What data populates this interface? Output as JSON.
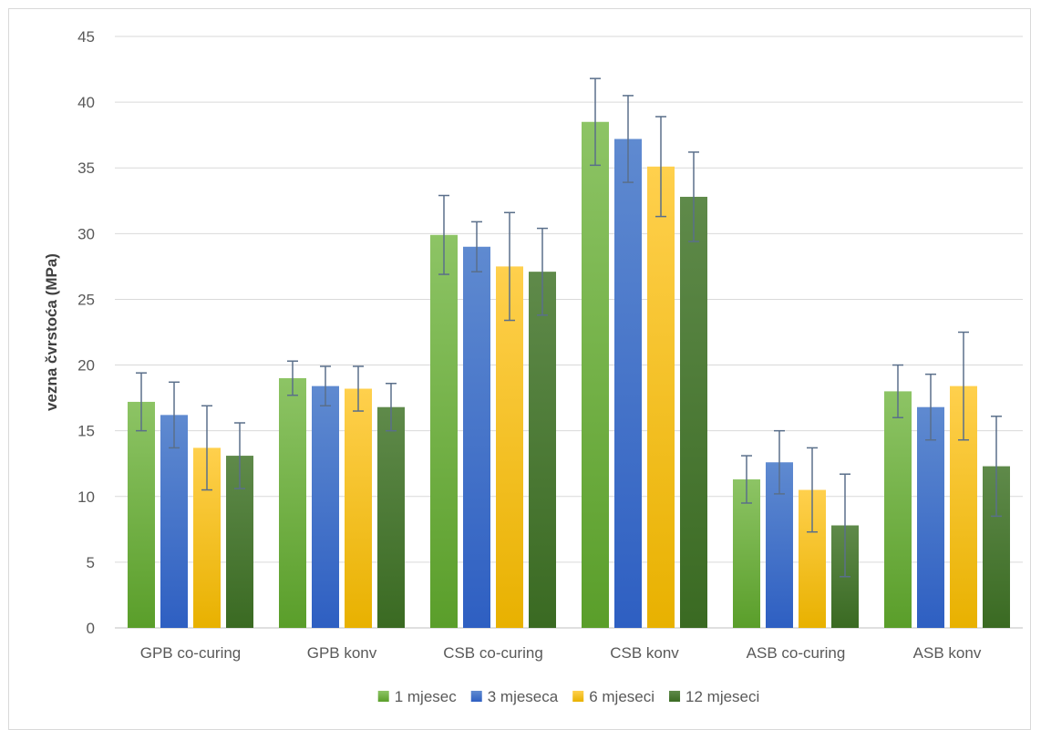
{
  "chart_data": {
    "type": "bar",
    "title": "",
    "xlabel": "",
    "ylabel": "vezna čvrstoća (MPa)",
    "ylim": [
      0,
      45
    ],
    "yticks": [
      0,
      5,
      10,
      15,
      20,
      25,
      30,
      35,
      40,
      45
    ],
    "grid": true,
    "legend_position": "bottom",
    "categories": [
      "GPB co-curing",
      "GPB konv",
      "CSB co-curing",
      "CSB konv",
      "ASB co-curing",
      "ASB konv"
    ],
    "series": [
      {
        "name": "1 mjesec",
        "color_top": "#8dc465",
        "color_bottom": "#5a9e2a",
        "values": [
          17.2,
          19.0,
          29.9,
          38.5,
          11.3,
          18.0
        ],
        "errors": [
          2.2,
          1.3,
          3.0,
          3.3,
          1.8,
          2.0
        ]
      },
      {
        "name": "3 mjeseca",
        "color_top": "#5f8ad0",
        "color_bottom": "#2e5fc2",
        "values": [
          16.2,
          18.4,
          29.0,
          37.2,
          12.6,
          16.8
        ],
        "errors": [
          2.5,
          1.5,
          1.9,
          3.3,
          2.4,
          2.5
        ]
      },
      {
        "name": "6 mjeseci",
        "color_top": "#ffd04d",
        "color_bottom": "#e8b100",
        "values": [
          13.7,
          18.2,
          27.5,
          35.1,
          10.5,
          18.4
        ],
        "errors": [
          3.2,
          1.7,
          4.1,
          3.8,
          3.2,
          4.1
        ]
      },
      {
        "name": "12 mjeseci",
        "color_top": "#5f8a4a",
        "color_bottom": "#3a6a22",
        "values": [
          13.1,
          16.8,
          27.1,
          32.8,
          7.8,
          12.3
        ],
        "errors": [
          2.5,
          1.8,
          3.3,
          3.4,
          3.9,
          3.8
        ]
      }
    ],
    "error_bar_color": "#5a6f8a",
    "gridline_color": "#d9d9d9"
  }
}
